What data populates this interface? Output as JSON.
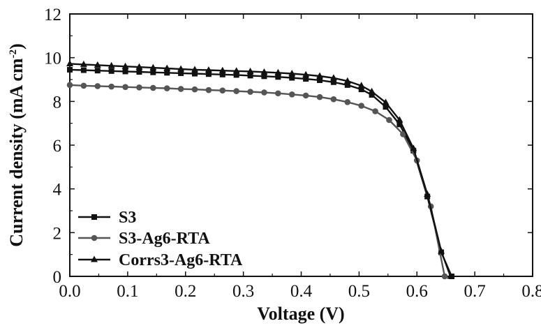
{
  "chart_data": {
    "type": "line",
    "xlabel": "Voltage (V)",
    "ylabel_main": "Current density (mA cm",
    "ylabel_sup": "-2",
    "ylabel_close": ")",
    "xlim": [
      0,
      0.8
    ],
    "ylim": [
      0,
      12
    ],
    "xticks": [
      "0.0",
      "0.1",
      "0.2",
      "0.3",
      "0.4",
      "0.5",
      "0.6",
      "0.7",
      "0.8"
    ],
    "yticks": [
      "0",
      "2",
      "4",
      "6",
      "8",
      "10",
      "12"
    ],
    "grid": false,
    "legend_position": "bottom-left",
    "series": [
      {
        "name": "S3",
        "marker": "square",
        "color": "#111111",
        "x": [
          0.0,
          0.024,
          0.048,
          0.072,
          0.096,
          0.12,
          0.144,
          0.168,
          0.192,
          0.216,
          0.24,
          0.264,
          0.288,
          0.312,
          0.336,
          0.36,
          0.384,
          0.408,
          0.432,
          0.456,
          0.48,
          0.504,
          0.522,
          0.546,
          0.57,
          0.594,
          0.618,
          0.642,
          0.66
        ],
        "y": [
          9.45,
          9.43,
          9.41,
          9.39,
          9.37,
          9.35,
          9.33,
          9.31,
          9.29,
          9.27,
          9.25,
          9.23,
          9.21,
          9.18,
          9.15,
          9.12,
          9.08,
          9.03,
          8.97,
          8.88,
          8.75,
          8.55,
          8.3,
          7.75,
          6.95,
          5.75,
          3.65,
          1.1,
          0.0
        ]
      },
      {
        "name": "S3-Ag6-RTA",
        "marker": "circle",
        "color": "#555555",
        "x": [
          0.0,
          0.024,
          0.048,
          0.072,
          0.096,
          0.12,
          0.144,
          0.168,
          0.192,
          0.216,
          0.24,
          0.264,
          0.288,
          0.312,
          0.336,
          0.36,
          0.384,
          0.408,
          0.432,
          0.456,
          0.48,
          0.504,
          0.528,
          0.552,
          0.576,
          0.6,
          0.624,
          0.648
        ],
        "y": [
          8.75,
          8.72,
          8.7,
          8.68,
          8.66,
          8.64,
          8.62,
          8.6,
          8.57,
          8.55,
          8.52,
          8.5,
          8.47,
          8.44,
          8.41,
          8.37,
          8.32,
          8.27,
          8.2,
          8.1,
          7.97,
          7.8,
          7.55,
          7.15,
          6.5,
          5.3,
          3.2,
          0.0
        ]
      },
      {
        "name": "Corrs3-Ag6-RTA",
        "marker": "triangle",
        "color": "#111111",
        "x": [
          0.0,
          0.024,
          0.048,
          0.072,
          0.096,
          0.12,
          0.144,
          0.168,
          0.192,
          0.216,
          0.24,
          0.264,
          0.288,
          0.312,
          0.336,
          0.36,
          0.384,
          0.408,
          0.432,
          0.456,
          0.48,
          0.504,
          0.522,
          0.546,
          0.57,
          0.594,
          0.618,
          0.642,
          0.658
        ],
        "y": [
          9.72,
          9.69,
          9.66,
          9.63,
          9.6,
          9.57,
          9.54,
          9.51,
          9.48,
          9.45,
          9.43,
          9.41,
          9.39,
          9.37,
          9.34,
          9.31,
          9.27,
          9.22,
          9.16,
          9.07,
          8.93,
          8.72,
          8.45,
          7.95,
          7.15,
          5.85,
          3.75,
          1.15,
          0.0
        ]
      }
    ]
  }
}
